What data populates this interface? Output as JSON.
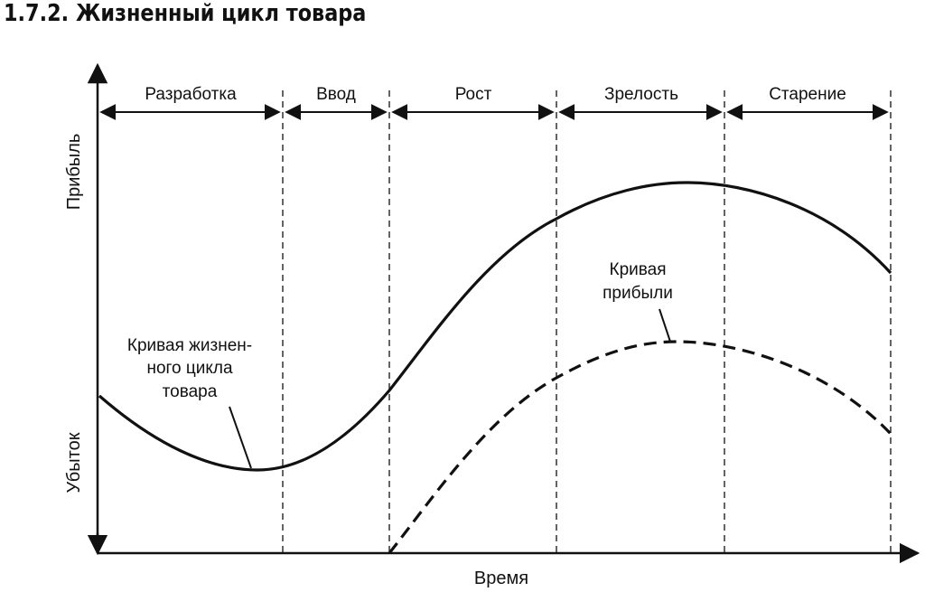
{
  "title": "1.7.2. Жизненный цикл товара",
  "y_axis": {
    "top_label": "Прибыль",
    "bottom_label": "Убыток"
  },
  "x_axis": {
    "label": "Время"
  },
  "stages": [
    "Разработка",
    "Ввод",
    "Рост",
    "Зрелость",
    "Старение"
  ],
  "annotations": {
    "lifecycle_curve": [
      "Кривая жизнен-",
      "ного цикла",
      "товара"
    ],
    "profit_curve": [
      "Кривая",
      "прибыли"
    ]
  },
  "colors": {
    "ink": "#111111",
    "background": "#ffffff"
  }
}
